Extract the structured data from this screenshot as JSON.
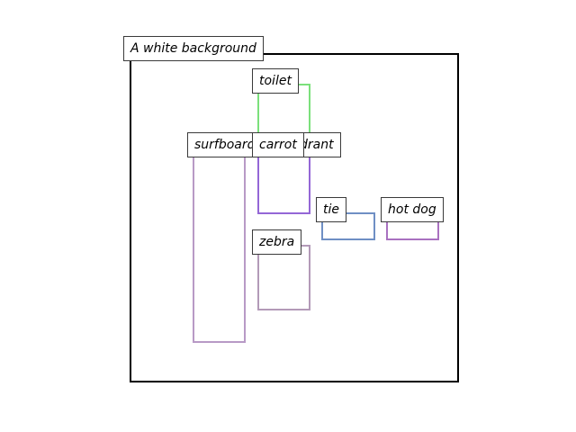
{
  "caption": "A white background",
  "objects": [
    {
      "id": "toilet",
      "label": "toilet",
      "color": "#7be07b"
    },
    {
      "id": "surfboard",
      "label": "surfboard",
      "color": "#b89ac6"
    },
    {
      "id": "fire-hydrant",
      "label": "fire hydrant",
      "color": "#9467d6"
    },
    {
      "id": "carrot",
      "label": "carrot",
      "color": "#9467d6"
    },
    {
      "id": "tie",
      "label": "tie",
      "color": "#6f8fc4"
    },
    {
      "id": "hot-dog",
      "label": "hot dog",
      "color": "#a971c0"
    },
    {
      "id": "zebra",
      "label": "zebra",
      "color": "#b39ab8"
    }
  ]
}
